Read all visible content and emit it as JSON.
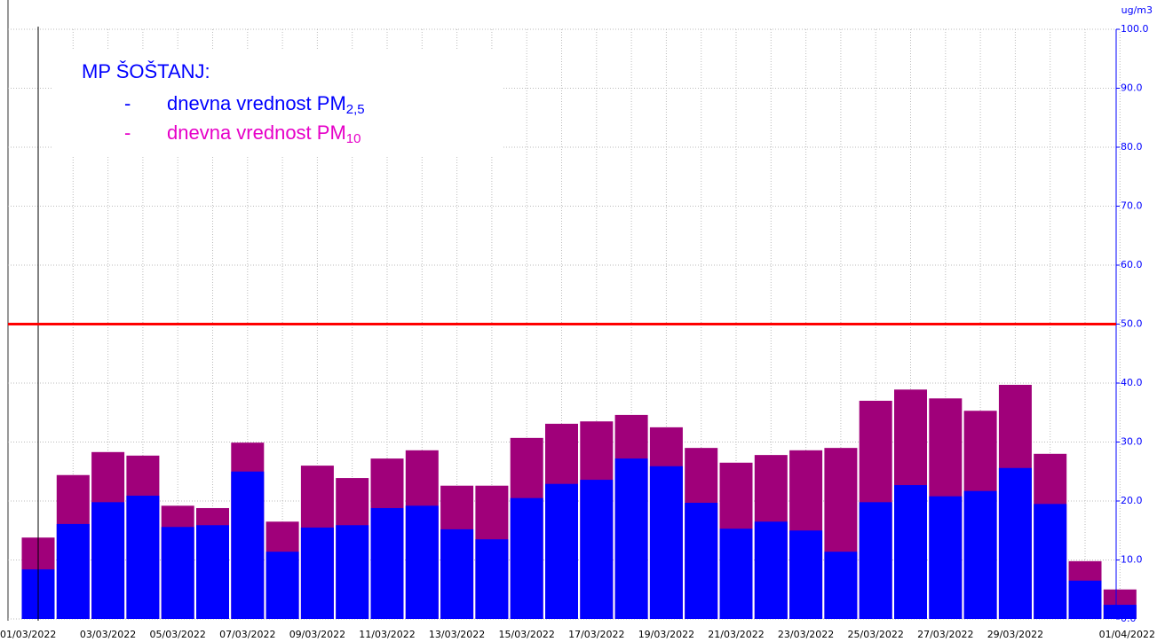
{
  "chart_data": {
    "type": "bar",
    "legend_title": "MP ŠOŠTANJ:",
    "legend_dash": "-",
    "y_unit": "ug/m3",
    "categories": [
      "01/03/2022",
      null,
      "03/03/2022",
      null,
      "05/03/2022",
      null,
      "07/03/2022",
      null,
      "09/03/2022",
      null,
      "11/03/2022",
      null,
      "13/03/2022",
      null,
      "15/03/2022",
      null,
      "17/03/2022",
      null,
      "19/03/2022",
      null,
      "21/03/2022",
      null,
      "23/03/2022",
      null,
      "25/03/2022",
      null,
      "27/03/2022",
      null,
      "29/03/2022",
      null,
      null,
      "01/04/2022"
    ],
    "series": [
      {
        "name": "dnevna vrednost PM",
        "name_sub": "10",
        "color": "#a0007a",
        "legend_color": "#e600c8",
        "values": [
          13.8,
          24.4,
          28.3,
          27.7,
          19.2,
          18.8,
          29.9,
          16.5,
          26.0,
          23.9,
          27.2,
          28.6,
          22.6,
          22.6,
          30.7,
          33.1,
          33.5,
          34.6,
          32.5,
          29.0,
          26.5,
          27.8,
          28.6,
          29.0,
          37.0,
          38.9,
          37.4,
          35.3,
          39.7,
          28.0,
          9.8,
          5.0
        ]
      },
      {
        "name": "dnevna vrednost PM",
        "name_sub": "2,5",
        "color": "#0000ff",
        "legend_color": "#0000ff",
        "values": [
          8.4,
          16.1,
          19.8,
          20.9,
          15.6,
          15.9,
          25.0,
          11.4,
          15.5,
          15.9,
          18.8,
          19.2,
          15.2,
          13.5,
          20.5,
          22.9,
          23.6,
          27.2,
          25.9,
          19.7,
          15.3,
          16.5,
          15.0,
          11.4,
          19.8,
          22.7,
          20.8,
          21.7,
          25.6,
          19.5,
          6.5,
          2.4
        ]
      }
    ],
    "threshold": 50,
    "threshold_color": "#ff0000",
    "ylim": [
      0,
      100
    ],
    "yticks": [
      {
        "value": 0,
        "label": "0.0"
      },
      {
        "value": 10,
        "label": "10.0"
      },
      {
        "value": 20,
        "label": "20.0"
      },
      {
        "value": 30,
        "label": "30.0"
      },
      {
        "value": 40,
        "label": "40.0"
      },
      {
        "value": 50,
        "label": "50.0"
      },
      {
        "value": 60,
        "label": "60.0"
      },
      {
        "value": 70,
        "label": "70.0"
      },
      {
        "value": 80,
        "label": "80.0"
      },
      {
        "value": 90,
        "label": "90.0"
      },
      {
        "value": 100,
        "label": "100.0"
      }
    ],
    "grid": true
  }
}
